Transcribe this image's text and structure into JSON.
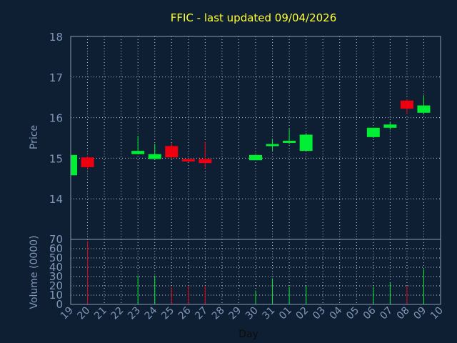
{
  "chart_data": {
    "type": "candlestick",
    "title": "FFIC - last updated 09/04/2026",
    "xlabel": "Day",
    "price_panel": {
      "ylabel": "Price",
      "ylim": [
        13,
        18
      ],
      "yticks": [
        "18",
        "17",
        "16",
        "15",
        "14"
      ],
      "ytick_values": [
        18,
        17,
        16,
        15,
        14
      ]
    },
    "volume_panel": {
      "ylabel": "Volume (0000)",
      "ylim": [
        0,
        70
      ],
      "yticks": [
        "70",
        "60",
        "50",
        "40",
        "30",
        "20",
        "10",
        "0"
      ],
      "ytick_values": [
        70,
        60,
        50,
        40,
        30,
        20,
        10,
        0
      ]
    },
    "x_tick_labels": [
      "19",
      "20",
      "21",
      "22",
      "23",
      "24",
      "25",
      "26",
      "27",
      "28",
      "29",
      "30",
      "31",
      "01",
      "02",
      "03",
      "04",
      "05",
      "06",
      "07",
      "08",
      "09",
      "10"
    ],
    "candles": [
      {
        "x": "19",
        "open": 14.58,
        "close": 15.08,
        "high": 15.08,
        "low": 14.58,
        "volume": 0
      },
      {
        "x": "20",
        "open": 15.02,
        "close": 14.78,
        "high": 15.05,
        "low": 14.72,
        "volume": 68
      },
      {
        "x": "23",
        "open": 15.1,
        "close": 15.18,
        "high": 15.55,
        "low": 15.1,
        "volume": 31
      },
      {
        "x": "24",
        "open": 14.98,
        "close": 15.1,
        "high": 15.35,
        "low": 14.98,
        "volume": 31
      },
      {
        "x": "25",
        "open": 15.3,
        "close": 15.02,
        "high": 15.38,
        "low": 15.0,
        "volume": 18
      },
      {
        "x": "26",
        "open": 14.98,
        "close": 14.92,
        "high": 14.98,
        "low": 14.9,
        "volume": 20
      },
      {
        "x": "27",
        "open": 14.98,
        "close": 14.88,
        "high": 15.4,
        "low": 14.75,
        "volume": 20
      },
      {
        "x": "30",
        "open": 14.95,
        "close": 15.08,
        "high": 15.08,
        "low": 14.95,
        "volume": 15
      },
      {
        "x": "31",
        "open": 15.32,
        "close": 15.35,
        "high": 15.48,
        "low": 15.18,
        "volume": 28
      },
      {
        "x": "01",
        "open": 15.4,
        "close": 15.43,
        "high": 15.72,
        "low": 15.35,
        "volume": 19
      },
      {
        "x": "02",
        "open": 15.18,
        "close": 15.58,
        "high": 15.62,
        "low": 15.18,
        "volume": 20
      },
      {
        "x": "06",
        "open": 15.52,
        "close": 15.75,
        "high": 15.75,
        "low": 15.5,
        "volume": 19
      },
      {
        "x": "07",
        "open": 15.75,
        "close": 15.83,
        "high": 15.9,
        "low": 15.7,
        "volume": 24
      },
      {
        "x": "08",
        "open": 16.42,
        "close": 16.22,
        "high": 16.45,
        "low": 16.08,
        "volume": 20
      },
      {
        "x": "09",
        "open": 16.12,
        "close": 16.3,
        "high": 16.55,
        "low": 16.1,
        "volume": 38
      }
    ],
    "colors": {
      "background": "#0f1f33",
      "up": "#00ee33",
      "down": "#ee0011",
      "title": "#ffff33",
      "axis_text": "#7f97b8",
      "grid": "#bfc9d6"
    },
    "grid": true
  }
}
